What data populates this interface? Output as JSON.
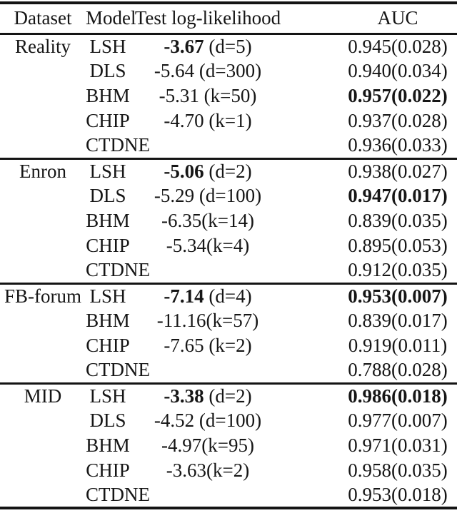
{
  "table": {
    "headers": [
      "Dataset",
      "Model",
      "Test log-likelihood",
      "AUC"
    ],
    "groups": [
      {
        "dataset": "Reality",
        "rows": [
          {
            "model": "LSH",
            "ll_bold": "-3.67",
            "ll_rest": " (d=5)",
            "auc": "0.945(0.028)",
            "auc_bold": false
          },
          {
            "model": "DLS",
            "ll_bold": "",
            "ll_rest": "-5.64 (d=300)",
            "auc": "0.940(0.034)",
            "auc_bold": false
          },
          {
            "model": "BHM",
            "ll_bold": "",
            "ll_rest": "-5.31 (k=50)",
            "auc": "0.957(0.022)",
            "auc_bold": true
          },
          {
            "model": "CHIP",
            "ll_bold": "",
            "ll_rest": "-4.70 (k=1)",
            "auc": "0.937(0.028)",
            "auc_bold": false
          },
          {
            "model": "CTDNE",
            "ll_bold": "",
            "ll_rest": "",
            "auc": "0.936(0.033)",
            "auc_bold": false
          }
        ]
      },
      {
        "dataset": "Enron",
        "rows": [
          {
            "model": "LSH",
            "ll_bold": "-5.06",
            "ll_rest": " (d=2)",
            "auc": "0.938(0.027)",
            "auc_bold": false
          },
          {
            "model": "DLS",
            "ll_bold": "",
            "ll_rest": "-5.29 (d=100)",
            "auc": "0.947(0.017)",
            "auc_bold": true
          },
          {
            "model": "BHM",
            "ll_bold": "",
            "ll_rest": "-6.35(k=14)",
            "auc": "0.839(0.035)",
            "auc_bold": false
          },
          {
            "model": "CHIP",
            "ll_bold": "",
            "ll_rest": "-5.34(k=4)",
            "auc": "0.895(0.053)",
            "auc_bold": false
          },
          {
            "model": "CTDNE",
            "ll_bold": "",
            "ll_rest": "",
            "auc": "0.912(0.035)",
            "auc_bold": false
          }
        ]
      },
      {
        "dataset": "FB-forum",
        "rows": [
          {
            "model": "LSH",
            "ll_bold": "-7.14",
            "ll_rest": " (d=4)",
            "auc": "0.953(0.007)",
            "auc_bold": true
          },
          {
            "model": "BHM",
            "ll_bold": "",
            "ll_rest": "-11.16(k=57)",
            "auc": "0.839(0.017)",
            "auc_bold": false
          },
          {
            "model": "CHIP",
            "ll_bold": "",
            "ll_rest": "-7.65 (k=2)",
            "auc": "0.919(0.011)",
            "auc_bold": false
          },
          {
            "model": "CTDNE",
            "ll_bold": "",
            "ll_rest": "",
            "auc": "0.788(0.028)",
            "auc_bold": false
          }
        ]
      },
      {
        "dataset": "MID",
        "rows": [
          {
            "model": "LSH",
            "ll_bold": "-3.38",
            "ll_rest": " (d=2)",
            "auc": "0.986(0.018)",
            "auc_bold": true
          },
          {
            "model": "DLS",
            "ll_bold": "",
            "ll_rest": "-4.52 (d=100)",
            "auc": "0.977(0.007)",
            "auc_bold": false
          },
          {
            "model": "BHM",
            "ll_bold": "",
            "ll_rest": "-4.97(k=95)",
            "auc": "0.971(0.031)",
            "auc_bold": false
          },
          {
            "model": "CHIP",
            "ll_bold": "",
            "ll_rest": "-3.63(k=2)",
            "auc": "0.958(0.035)",
            "auc_bold": false
          },
          {
            "model": "CTDNE",
            "ll_bold": "",
            "ll_rest": "",
            "auc": "0.953(0.018)",
            "auc_bold": false
          }
        ]
      }
    ]
  }
}
